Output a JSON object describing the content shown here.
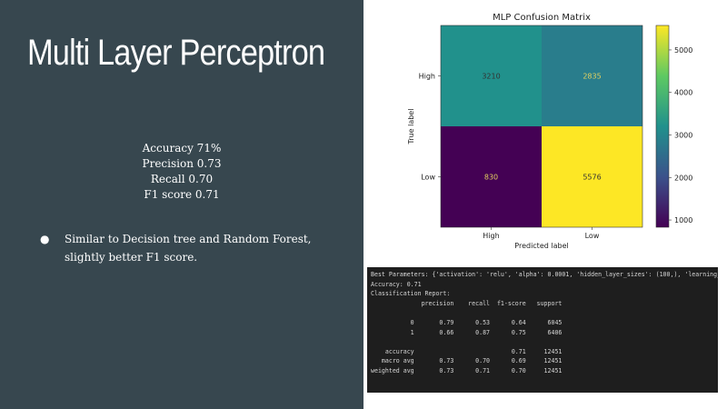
{
  "slide": {
    "title": "Multi Layer Perceptron",
    "metrics": [
      "Accuracy 71%",
      "Precision 0.73",
      "Recall 0.70",
      "F1 score 0.71"
    ],
    "bullet_symbol": "●",
    "bullets": [
      "Similar to Decision tree and Random Forest, slightly better F1 score."
    ]
  },
  "chart_data": {
    "type": "heatmap",
    "title": "MLP Confusion Matrix",
    "xlabel": "Predicted label",
    "ylabel": "True label",
    "x_categories": [
      "High",
      "Low"
    ],
    "y_categories": [
      "High",
      "Low"
    ],
    "values": [
      [
        3210,
        2835
      ],
      [
        830,
        5576
      ]
    ],
    "colorbar": {
      "min": 830,
      "max": 5576,
      "ticks": [
        1000,
        2000,
        3000,
        4000,
        5000
      ]
    },
    "colormap": [
      "#440154",
      "#3b528b",
      "#21918c",
      "#5ec962",
      "#fde725"
    ]
  },
  "report": {
    "lines": [
      "Best Parameters: {'activation': 'relu', 'alpha': 0.0001, 'hidden_layer_sizes': (100,), 'learning_rate': 'adaptive'}",
      "Accuracy: 0.71",
      "Classification Report:",
      "              precision    recall  f1-score   support",
      "",
      "           0       0.79      0.53      0.64      6045",
      "           1       0.66      0.87      0.75      6406",
      "",
      "    accuracy                           0.71     12451",
      "   macro avg       0.73      0.70      0.69     12451",
      "weighted avg       0.73      0.71      0.70     12451"
    ]
  }
}
